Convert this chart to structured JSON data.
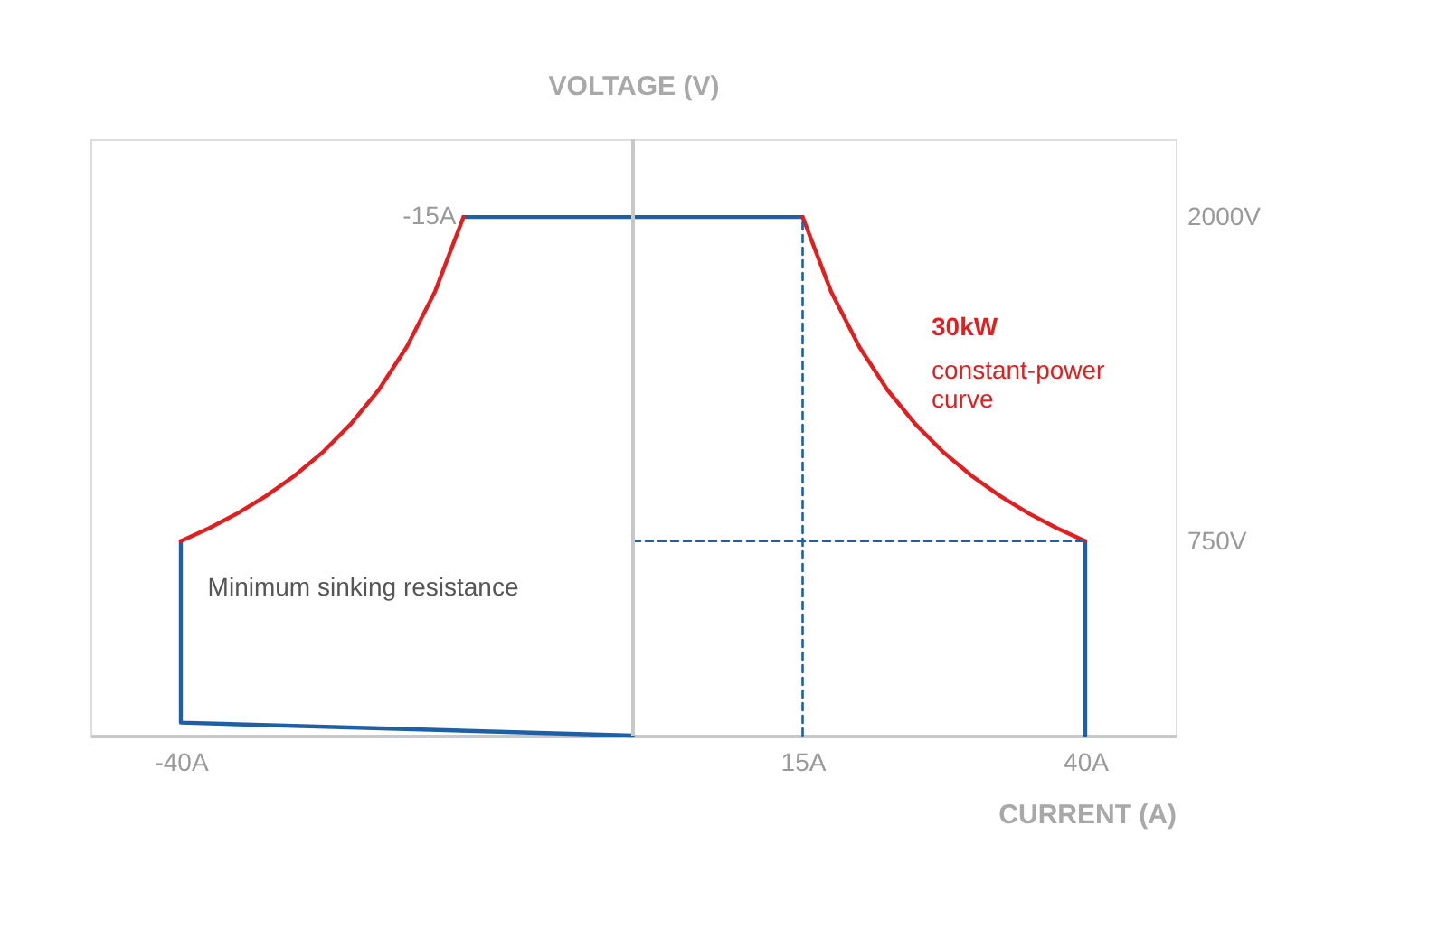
{
  "chart_data": {
    "type": "line",
    "xlabel": "CURRENT (A)",
    "ylabel": "VOLTAGE (V)",
    "xlim": [
      -48,
      48
    ],
    "ylim": [
      0,
      2300
    ],
    "xticks": [
      {
        "value": -40,
        "label": "-40A"
      },
      {
        "value": 15,
        "label": "15A"
      },
      {
        "value": 40,
        "label": "40A"
      }
    ],
    "yticks": [
      {
        "value": 750,
        "label": "750V"
      },
      {
        "value": 2000,
        "label": "2000V"
      }
    ],
    "grid": false,
    "series": [
      {
        "color": "#1f5fa6",
        "x": [
          -40,
          -40,
          0
        ],
        "values": [
          750,
          50,
          0
        ]
      },
      {
        "color": "#1f5fa6",
        "x": [
          -15,
          15
        ],
        "values": [
          2000,
          2000
        ]
      },
      {
        "color": "#1f5fa6",
        "x": [
          40,
          40
        ],
        "values": [
          750,
          0
        ]
      },
      {
        "color": "#e02020",
        "x": [
          -40,
          -37.5,
          -35,
          -32.5,
          -30,
          -27.5,
          -25,
          -22.5,
          -20,
          -17.5,
          -15
        ],
        "values": [
          750,
          800,
          857,
          923,
          1000,
          1091,
          1200,
          1333,
          1500,
          1714,
          2000
        ]
      },
      {
        "color": "#e02020",
        "x": [
          15,
          17.5,
          20,
          22.5,
          25,
          27.5,
          30,
          32.5,
          35,
          37.5,
          40
        ],
        "values": [
          2000,
          1714,
          1500,
          1333,
          1200,
          1091,
          1000,
          923,
          857,
          800,
          750
        ]
      },
      {
        "color": "#1f5fa6",
        "line_style": "dashed",
        "x": [
          15,
          15
        ],
        "values": [
          0,
          2000
        ]
      },
      {
        "color": "#1f5fa6",
        "line_style": "dashed",
        "x": [
          0,
          40
        ],
        "values": [
          750,
          750
        ]
      }
    ],
    "annotations": [
      {
        "text": "-15A",
        "x": -15,
        "y": 2000
      },
      "30kW",
      "constant-power curve",
      "Minimum sinking resistance"
    ]
  }
}
